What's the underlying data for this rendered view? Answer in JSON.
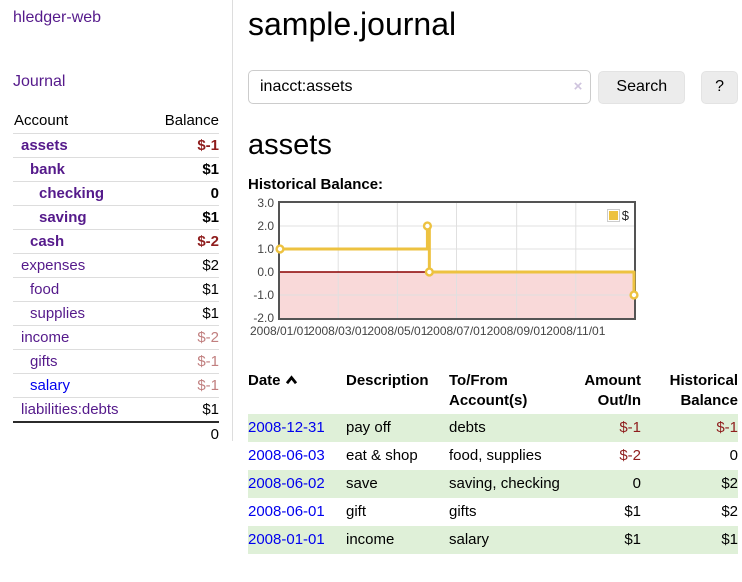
{
  "colors": {
    "accent_purple": "#551a8b",
    "link_blue": "#0000ee",
    "negative_strong": "#8f1d1d",
    "negative_faded": "#c17f7f",
    "row_highlight_green": "#dff0d8",
    "chart_line_gold": "#edc240",
    "chart_zero_line": "#8b0000",
    "chart_negative_region": "#f9d9d9",
    "chart_grid": "#e0e0e0",
    "chart_border": "#545454"
  },
  "sidebar": {
    "app_title": "hledger-web",
    "nav": {
      "journal_label": "Journal"
    },
    "accounts_table": {
      "headers": {
        "account": "Account",
        "balance": "Balance"
      },
      "rows": [
        {
          "name": "assets",
          "balance": "$-1",
          "depth": 1,
          "emphasis": true,
          "balance_style": "negative"
        },
        {
          "name": "bank",
          "balance": "$1",
          "depth": 2,
          "emphasis": true,
          "balance_style": "normal"
        },
        {
          "name": "checking",
          "balance": "0",
          "depth": 3,
          "emphasis": true,
          "balance_style": "normal"
        },
        {
          "name": "saving",
          "balance": "$1",
          "depth": 3,
          "emphasis": true,
          "balance_style": "normal"
        },
        {
          "name": "cash",
          "balance": "$-2",
          "depth": 2,
          "emphasis": true,
          "balance_style": "negative"
        },
        {
          "name": "expenses",
          "balance": "$2",
          "depth": 1,
          "emphasis": false,
          "balance_style": "normal"
        },
        {
          "name": "food",
          "balance": "$1",
          "depth": 2,
          "emphasis": false,
          "balance_style": "normal"
        },
        {
          "name": "supplies",
          "balance": "$1",
          "depth": 2,
          "emphasis": false,
          "balance_style": "normal"
        },
        {
          "name": "income",
          "balance": "$-2",
          "depth": 1,
          "emphasis": false,
          "balance_style": "negative-faded"
        },
        {
          "name": "gifts",
          "balance": "$-1",
          "depth": 2,
          "emphasis": false,
          "balance_style": "negative-faded"
        },
        {
          "name": "salary",
          "balance": "$-1",
          "depth": 2,
          "emphasis": false,
          "balance_style": "negative-faded",
          "link_style": "blue"
        },
        {
          "name": "liabilities:debts",
          "balance": "$1",
          "depth": 1,
          "emphasis": false,
          "balance_style": "normal"
        }
      ],
      "total": "0"
    }
  },
  "main": {
    "title": "sample.journal",
    "search": {
      "value": "inacct:assets",
      "clear_icon": "×",
      "button_label": "Search",
      "help_label": "?"
    },
    "account_heading": "assets",
    "chart_label": "Historical Balance:",
    "register_table": {
      "headers": {
        "date": "Date",
        "description": "Description",
        "accounts": "To/From Account(s)",
        "amount": "Amount Out/In",
        "balance": "Historical Balance"
      },
      "sort_column": "date",
      "sort_direction": "ascending",
      "rows": [
        {
          "date": "2008-12-31",
          "description": "pay off",
          "accounts": "debts",
          "amount": "$-1",
          "amount_style": "negative",
          "balance": "$-1",
          "balance_style": "negative",
          "highlighted": true
        },
        {
          "date": "2008-06-03",
          "description": "eat & shop",
          "accounts": "food, supplies",
          "amount": "$-2",
          "amount_style": "negative",
          "balance": "0",
          "balance_style": "normal",
          "highlighted": false
        },
        {
          "date": "2008-06-02",
          "description": "save",
          "accounts": "saving, checking",
          "amount": "0",
          "amount_style": "normal",
          "balance": "$2",
          "balance_style": "normal",
          "highlighted": true
        },
        {
          "date": "2008-06-01",
          "description": "gift",
          "accounts": "gifts",
          "amount": "$1",
          "amount_style": "normal",
          "balance": "$2",
          "balance_style": "normal",
          "highlighted": false
        },
        {
          "date": "2008-01-01",
          "description": "income",
          "accounts": "salary",
          "amount": "$1",
          "amount_style": "normal",
          "balance": "$1",
          "balance_style": "normal",
          "highlighted": true
        }
      ]
    }
  },
  "chart_data": {
    "type": "line",
    "title": "Historical Balance:",
    "step": true,
    "series": [
      {
        "name": "$",
        "color": "#edc240",
        "points": [
          [
            "2008-01-01",
            1
          ],
          [
            "2008-06-01",
            2
          ],
          [
            "2008-06-03",
            0
          ],
          [
            "2008-12-31",
            -1
          ]
        ]
      }
    ],
    "x_range": [
      "2008-01-01",
      "2008-12-31"
    ],
    "ylim": [
      -2,
      3
    ],
    "ytick_labels": [
      "3.0",
      "2.0",
      "1.0",
      "0.0",
      "-1.0",
      "-2.0"
    ],
    "yticks": [
      3,
      2,
      1,
      0,
      -1,
      -2
    ],
    "xtick_labels": [
      "2008/01/01",
      "2008/03/01",
      "2008/05/01",
      "2008/07/01",
      "2008/09/01",
      "2008/11/01"
    ],
    "legend": {
      "label": "$",
      "position": "top-right"
    },
    "grid": true,
    "zero_line_color": "#8b0000",
    "negative_region_color": "#f9d9d9",
    "grid_color": "#e0e0e0",
    "border_color": "#545454"
  }
}
